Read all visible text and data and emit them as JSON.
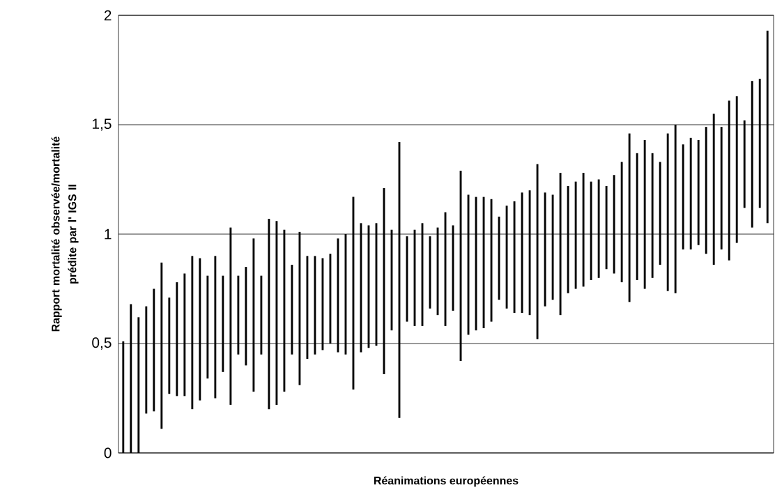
{
  "chart_data": {
    "type": "bar",
    "xlabel": "Réanimations européennes",
    "ylabel": "Rapport mortalité observée/mortalité prédite par l' IGS II",
    "categories": [
      null,
      null,
      null,
      null,
      null,
      null,
      null,
      null,
      null,
      null,
      null,
      null,
      null,
      null,
      null,
      null,
      null,
      null,
      null,
      null,
      null,
      null,
      null,
      null,
      null,
      null,
      null,
      null,
      null,
      null,
      null,
      null,
      null,
      null,
      null,
      null,
      null,
      null,
      null,
      null,
      null,
      null,
      null,
      null,
      null,
      null,
      null,
      null,
      null,
      null,
      null,
      null,
      null,
      null,
      null,
      null,
      null,
      null,
      null,
      null,
      null,
      null,
      null,
      null,
      null,
      null,
      null,
      null,
      null,
      null,
      null,
      null,
      null,
      null,
      null,
      null,
      null,
      null,
      null,
      null,
      null,
      null,
      null,
      null,
      null
    ],
    "base": [
      0,
      0,
      0,
      0.18,
      0.19,
      0.11,
      0.27,
      0.26,
      0.26,
      0.2,
      0.24,
      0.34,
      0.25,
      0.37,
      0.22,
      0.45,
      0.4,
      0.28,
      0.45,
      0.2,
      0.22,
      0.28,
      0.45,
      0.31,
      0.43,
      0.45,
      0.47,
      0.5,
      0.46,
      0.45,
      0.29,
      0.46,
      0.48,
      0.49,
      0.36,
      0.56,
      0.16,
      0.6,
      0.58,
      0.58,
      0.66,
      0.63,
      0.58,
      0.65,
      0.42,
      0.54,
      0.56,
      0.57,
      0.6,
      0.7,
      0.66,
      0.64,
      0.64,
      0.63,
      0.52,
      0.67,
      0.7,
      0.63,
      0.73,
      0.75,
      0.76,
      0.79,
      0.8,
      0.84,
      0.82,
      0.78,
      0.69,
      0.79,
      0.75,
      0.8,
      0.86,
      0.74,
      0.73,
      0.93,
      0.93,
      0.95,
      0.91,
      0.86,
      0.93,
      0.88,
      0.96,
      1.12,
      1.03,
      1.12,
      1.05
    ],
    "values": [
      0.51,
      0.68,
      0.62,
      0.49,
      0.56,
      0.76,
      0.44,
      0.52,
      0.56,
      0.7,
      0.65,
      0.47,
      0.65,
      0.44,
      0.81,
      0.36,
      0.45,
      0.7,
      0.36,
      0.87,
      0.84,
      0.74,
      0.41,
      0.7,
      0.47,
      0.45,
      0.42,
      0.41,
      0.52,
      0.55,
      0.88,
      0.59,
      0.56,
      0.56,
      0.85,
      0.46,
      1.26,
      0.39,
      0.44,
      0.47,
      0.33,
      0.4,
      0.52,
      0.39,
      0.87,
      0.64,
      0.61,
      0.6,
      0.56,
      0.38,
      0.47,
      0.51,
      0.55,
      0.57,
      0.8,
      0.52,
      0.48,
      0.65,
      0.49,
      0.49,
      0.52,
      0.45,
      0.45,
      0.38,
      0.45,
      0.55,
      0.77,
      0.58,
      0.68,
      0.57,
      0.47,
      0.72,
      0.77,
      0.48,
      0.51,
      0.48,
      0.58,
      0.69,
      0.56,
      0.73,
      0.67,
      0.4,
      0.67,
      0.59,
      0.88
    ],
    "color": "#000000",
    "ylim": [
      0,
      2
    ],
    "yticks": [
      0,
      {
        "value": 0.5,
        "label": "0,5"
      },
      1,
      {
        "value": 1.5,
        "label": "1,5"
      },
      2
    ],
    "grid": "y"
  }
}
